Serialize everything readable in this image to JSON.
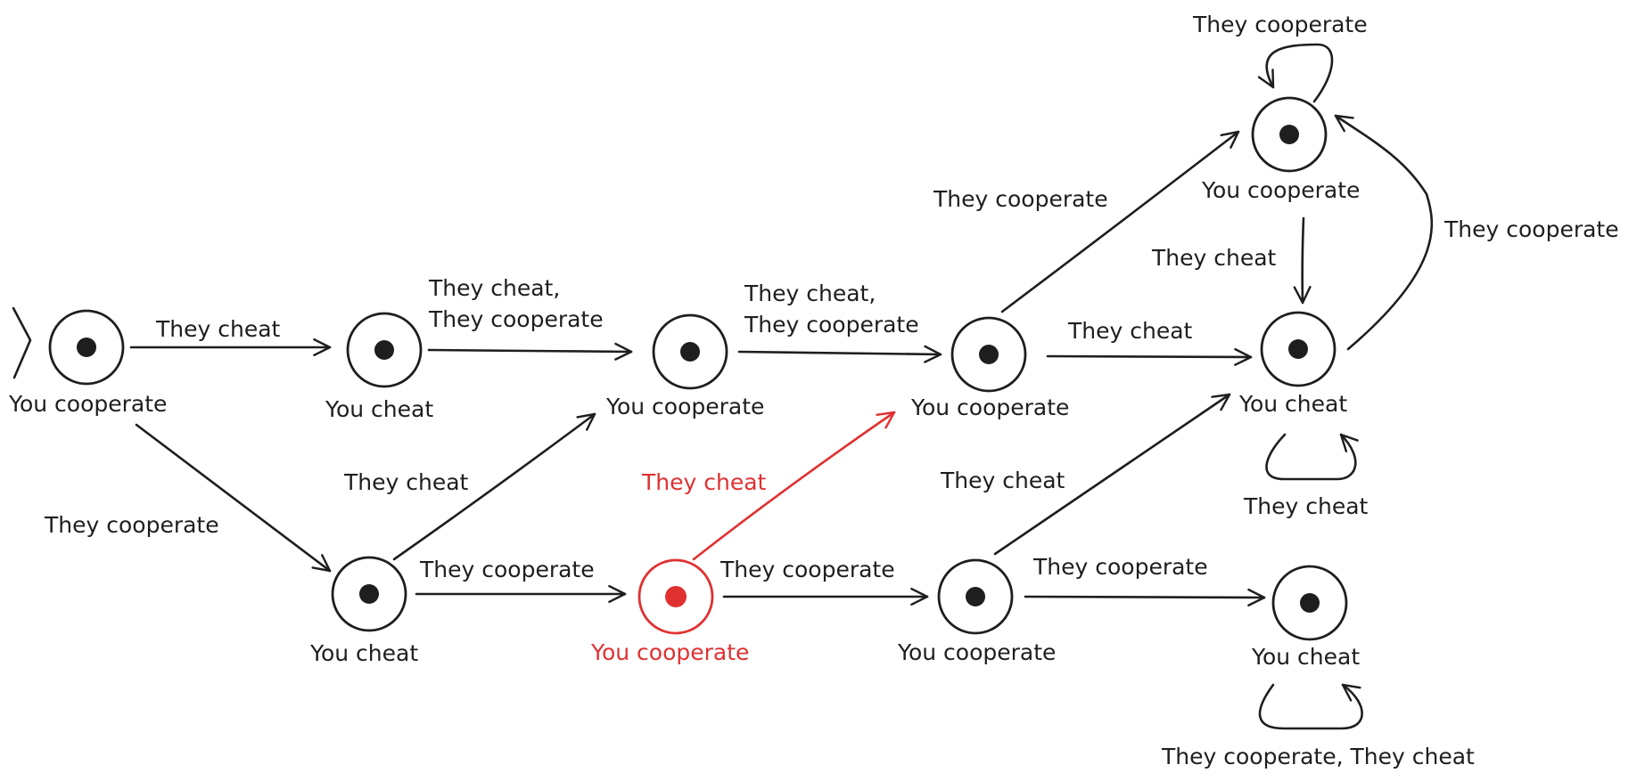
{
  "colors": {
    "ink": "#1e1e1e",
    "highlight": "#e03131",
    "background": "#ffffff"
  },
  "start_marker": {
    "icon": "start-chevron-icon"
  },
  "states": [
    {
      "id": "s0",
      "label": "You cooperate",
      "highlight": false
    },
    {
      "id": "s1",
      "label": "You cheat",
      "highlight": false
    },
    {
      "id": "s2",
      "label": "You cheat",
      "highlight": false
    },
    {
      "id": "s3",
      "label": "You cooperate",
      "highlight": false
    },
    {
      "id": "s4",
      "label": "You cooperate",
      "highlight": true
    },
    {
      "id": "s5",
      "label": "You cooperate",
      "highlight": false
    },
    {
      "id": "s6",
      "label": "You cooperate",
      "highlight": false
    },
    {
      "id": "s7",
      "label": "You cooperate",
      "highlight": false
    },
    {
      "id": "s8",
      "label": "You cheat",
      "highlight": false
    },
    {
      "id": "s9",
      "label": "You cheat",
      "highlight": false
    }
  ],
  "transitions": [
    {
      "from": "s0",
      "to": "s1",
      "label": [
        "They cheat"
      ]
    },
    {
      "from": "s0",
      "to": "s2",
      "label": [
        "They cooperate"
      ]
    },
    {
      "from": "s1",
      "to": "s3",
      "label": [
        "They cheat,",
        "They cooperate"
      ]
    },
    {
      "from": "s2",
      "to": "s3",
      "label": [
        "They cheat"
      ]
    },
    {
      "from": "s2",
      "to": "s4",
      "label": [
        "They cooperate"
      ]
    },
    {
      "from": "s3",
      "to": "s5",
      "label": [
        "They cheat,",
        "They cooperate"
      ]
    },
    {
      "from": "s4",
      "to": "s5",
      "label": [
        "They cheat"
      ],
      "highlight": true
    },
    {
      "from": "s4",
      "to": "s6",
      "label": [
        "They cooperate"
      ]
    },
    {
      "from": "s5",
      "to": "s7",
      "label": [
        "They cooperate"
      ]
    },
    {
      "from": "s5",
      "to": "s8",
      "label": [
        "They cheat"
      ]
    },
    {
      "from": "s6",
      "to": "s8",
      "label": [
        "They cheat"
      ]
    },
    {
      "from": "s6",
      "to": "s9",
      "label": [
        "They cooperate"
      ]
    },
    {
      "from": "s7",
      "to": "s8",
      "label": [
        "They cheat"
      ]
    },
    {
      "from": "s8",
      "to": "s7",
      "label": [
        "They cooperate"
      ]
    },
    {
      "from": "s7",
      "to": "s7",
      "label": [
        "They cooperate"
      ]
    },
    {
      "from": "s8",
      "to": "s8",
      "label": [
        "They cheat"
      ]
    },
    {
      "from": "s9",
      "to": "s9",
      "label": [
        "They cooperate, They cheat"
      ]
    }
  ]
}
